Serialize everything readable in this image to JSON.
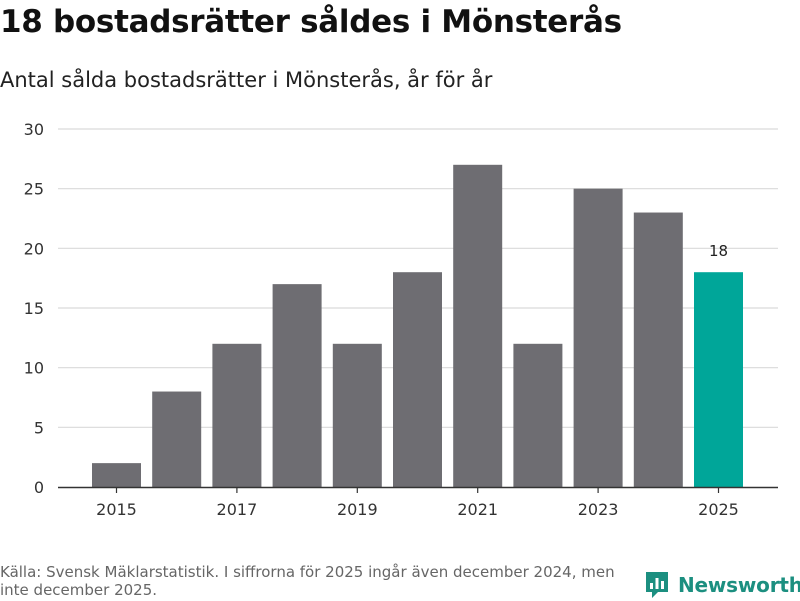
{
  "header": {
    "title": "18 bostadsrätter såldes i Mönsterås",
    "subtitle": "Antal sålda bostadsrätter i Mönsterås, år för år"
  },
  "chart_data": {
    "type": "bar",
    "title": "18 bostadsrätter såldes i Mönsterås",
    "subtitle": "Antal sålda bostadsrätter i Mönsterås, år för år",
    "xlabel": "",
    "ylabel": "",
    "categories": [
      "2015",
      "2016",
      "2017",
      "2018",
      "2019",
      "2020",
      "2021",
      "2022",
      "2023",
      "2024",
      "2025"
    ],
    "x_tick_labels": [
      "2015",
      "2017",
      "2019",
      "2021",
      "2023",
      "2025"
    ],
    "values": [
      2,
      8,
      12,
      17,
      12,
      18,
      27,
      12,
      25,
      23,
      18
    ],
    "ylim": [
      0,
      30
    ],
    "y_ticks": [
      0,
      5,
      10,
      15,
      20,
      25,
      30
    ],
    "grid": true,
    "highlight_index": 10,
    "data_labels": [
      {
        "index": 10,
        "text": "18"
      }
    ],
    "colors": {
      "bar": "#6e6d72",
      "highlight": "#00a699",
      "grid": "#d9d9d9",
      "axis": "#333333"
    }
  },
  "footer": {
    "source": "Källa: Svensk Mäklarstatistik. I siffrorna för 2025 ingår även december 2024, men inte december 2025."
  },
  "brand": {
    "name": "Newsworthy",
    "color": "#1c8f80",
    "icon": "newsworthy-logo-icon"
  }
}
